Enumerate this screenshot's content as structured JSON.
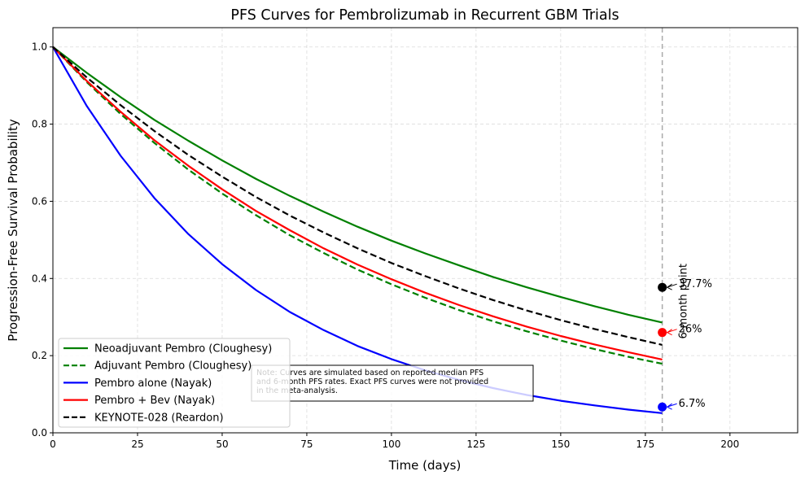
{
  "chart_data": {
    "type": "line",
    "title": "PFS Curves for Pembrolizumab in Recurrent GBM Trials",
    "xlabel": "Time (days)",
    "ylabel": "Progression-Free Survival Probability",
    "xlim": [
      0,
      220
    ],
    "ylim": [
      0,
      1.05
    ],
    "xticks": [
      0,
      25,
      50,
      75,
      100,
      125,
      150,
      175,
      200
    ],
    "yticks": [
      0.0,
      0.2,
      0.4,
      0.6,
      0.8,
      1.0
    ],
    "grid": true,
    "legend_position": "lower-left",
    "x": [
      0,
      10,
      20,
      30,
      40,
      50,
      60,
      70,
      80,
      90,
      100,
      110,
      120,
      130,
      140,
      150,
      160,
      170,
      180
    ],
    "series": [
      {
        "name": "Neoadjuvant Pembro (Cloughesy)",
        "color": "#008000",
        "dash": "solid",
        "values": [
          1.0,
          0.933,
          0.87,
          0.811,
          0.757,
          0.706,
          0.658,
          0.614,
          0.573,
          0.534,
          0.498,
          0.465,
          0.434,
          0.404,
          0.377,
          0.352,
          0.328,
          0.306,
          0.286
        ]
      },
      {
        "name": "Adjuvant Pembro (Cloughesy)",
        "color": "#008000",
        "dash": "dashed",
        "values": [
          1.0,
          0.909,
          0.826,
          0.751,
          0.682,
          0.62,
          0.564,
          0.512,
          0.466,
          0.423,
          0.385,
          0.35,
          0.318,
          0.289,
          0.263,
          0.239,
          0.217,
          0.197,
          0.179
        ]
      },
      {
        "name": "Pembro alone (Nayak)",
        "color": "#0000ff",
        "dash": "solid",
        "values": [
          1.0,
          0.847,
          0.718,
          0.608,
          0.515,
          0.437,
          0.37,
          0.313,
          0.266,
          0.225,
          0.191,
          0.162,
          0.137,
          0.116,
          0.098,
          0.083,
          0.071,
          0.06,
          0.051
        ]
      },
      {
        "name": "Pembro + Bev (Nayak)",
        "color": "#ff0000",
        "dash": "solid",
        "values": [
          1.0,
          0.912,
          0.832,
          0.758,
          0.692,
          0.631,
          0.575,
          0.525,
          0.478,
          0.436,
          0.398,
          0.363,
          0.331,
          0.302,
          0.275,
          0.251,
          0.229,
          0.209,
          0.19
        ]
      },
      {
        "name": "KEYNOTE-028 (Reardon)",
        "color": "#000000",
        "dash": "dashed",
        "values": [
          1.0,
          0.921,
          0.849,
          0.782,
          0.72,
          0.664,
          0.611,
          0.563,
          0.519,
          0.478,
          0.44,
          0.406,
          0.374,
          0.344,
          0.317,
          0.292,
          0.269,
          0.248,
          0.228
        ]
      }
    ],
    "vline": {
      "x": 180,
      "label": "6-month point",
      "color": "#aaaaaa"
    },
    "markers": [
      {
        "x": 180,
        "y": 0.377,
        "color": "#000000",
        "label": "37.7%"
      },
      {
        "x": 180,
        "y": 0.26,
        "color": "#ff0000",
        "label": "26%"
      },
      {
        "x": 180,
        "y": 0.067,
        "color": "#0000ff",
        "label": "6.7%"
      }
    ],
    "note": [
      "Note: Curves are simulated based on reported median PFS",
      "and 6-month PFS rates. Exact PFS curves were not provided",
      "in the meta-analysis."
    ]
  }
}
